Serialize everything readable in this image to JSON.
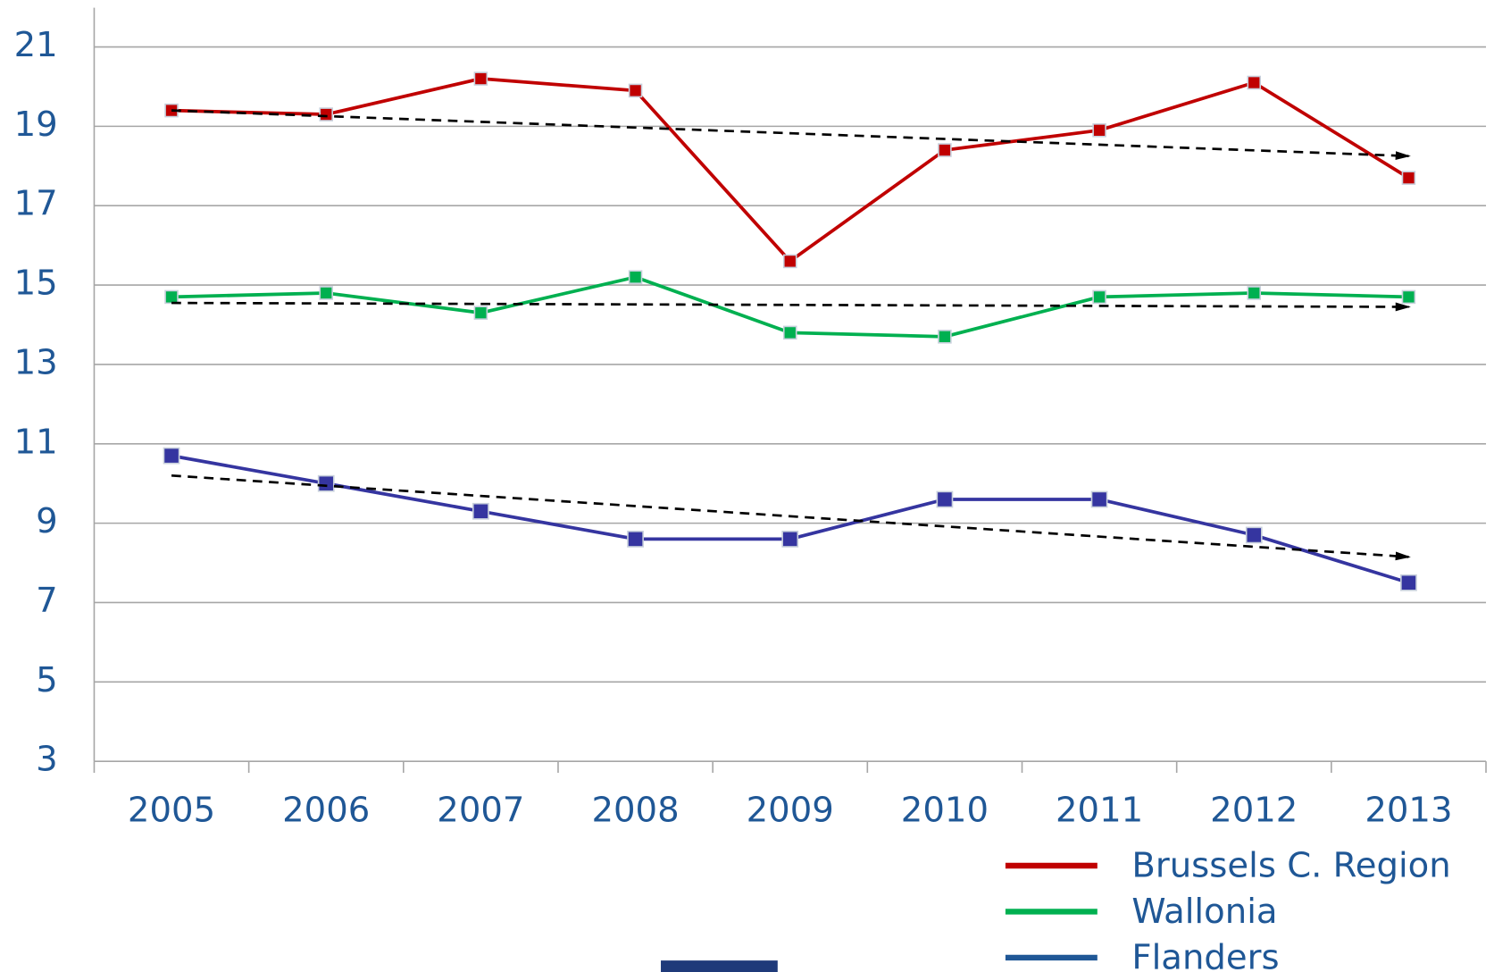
{
  "chart_data": {
    "type": "line",
    "categories": [
      "2005",
      "2006",
      "2007",
      "2008",
      "2009",
      "2010",
      "2011",
      "2012",
      "2013"
    ],
    "series": [
      {
        "name": "Brussels C. Region",
        "color": "#c00000",
        "values": [
          19.4,
          19.3,
          20.2,
          19.9,
          15.6,
          18.4,
          18.9,
          20.1,
          17.7
        ]
      },
      {
        "name": "Wallonia",
        "color": "#00b050",
        "values": [
          14.7,
          14.8,
          14.3,
          15.2,
          13.8,
          13.7,
          14.7,
          14.8,
          14.7
        ]
      },
      {
        "name": "Flanders",
        "color": "#3535a0",
        "legend_color": "#1f5796",
        "values": [
          10.7,
          10.0,
          9.3,
          8.6,
          8.6,
          9.6,
          9.6,
          8.7,
          7.5
        ]
      }
    ],
    "trend_lines": [
      {
        "color": "#000000",
        "values": [
          19.4,
          18.25
        ]
      },
      {
        "color": "#000000",
        "values": [
          14.55,
          14.45
        ]
      },
      {
        "color": "#000000",
        "values": [
          10.2,
          8.15
        ]
      }
    ],
    "ylim": [
      3,
      22
    ],
    "yticks": [
      3,
      5,
      7,
      9,
      11,
      13,
      15,
      17,
      19,
      21
    ],
    "grid": true,
    "legend": "bottom-right"
  }
}
